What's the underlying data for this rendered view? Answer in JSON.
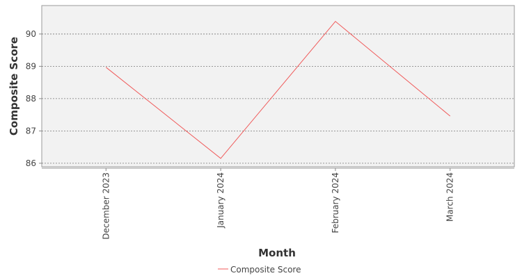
{
  "chart_data": {
    "type": "line",
    "x_label": "Month",
    "y_label": "Composite Score",
    "categories": [
      "December 2023",
      "January 2024",
      "February 2024",
      "March 2024"
    ],
    "series": [
      {
        "name": "Composite Score",
        "color": "#f05a5a",
        "values": [
          88.97,
          86.15,
          90.39,
          87.46
        ]
      }
    ],
    "ylim": [
      85.89,
      90.88
    ],
    "yticks": [
      86,
      87,
      88,
      89,
      90
    ],
    "grid": true,
    "legend": "bottom"
  }
}
